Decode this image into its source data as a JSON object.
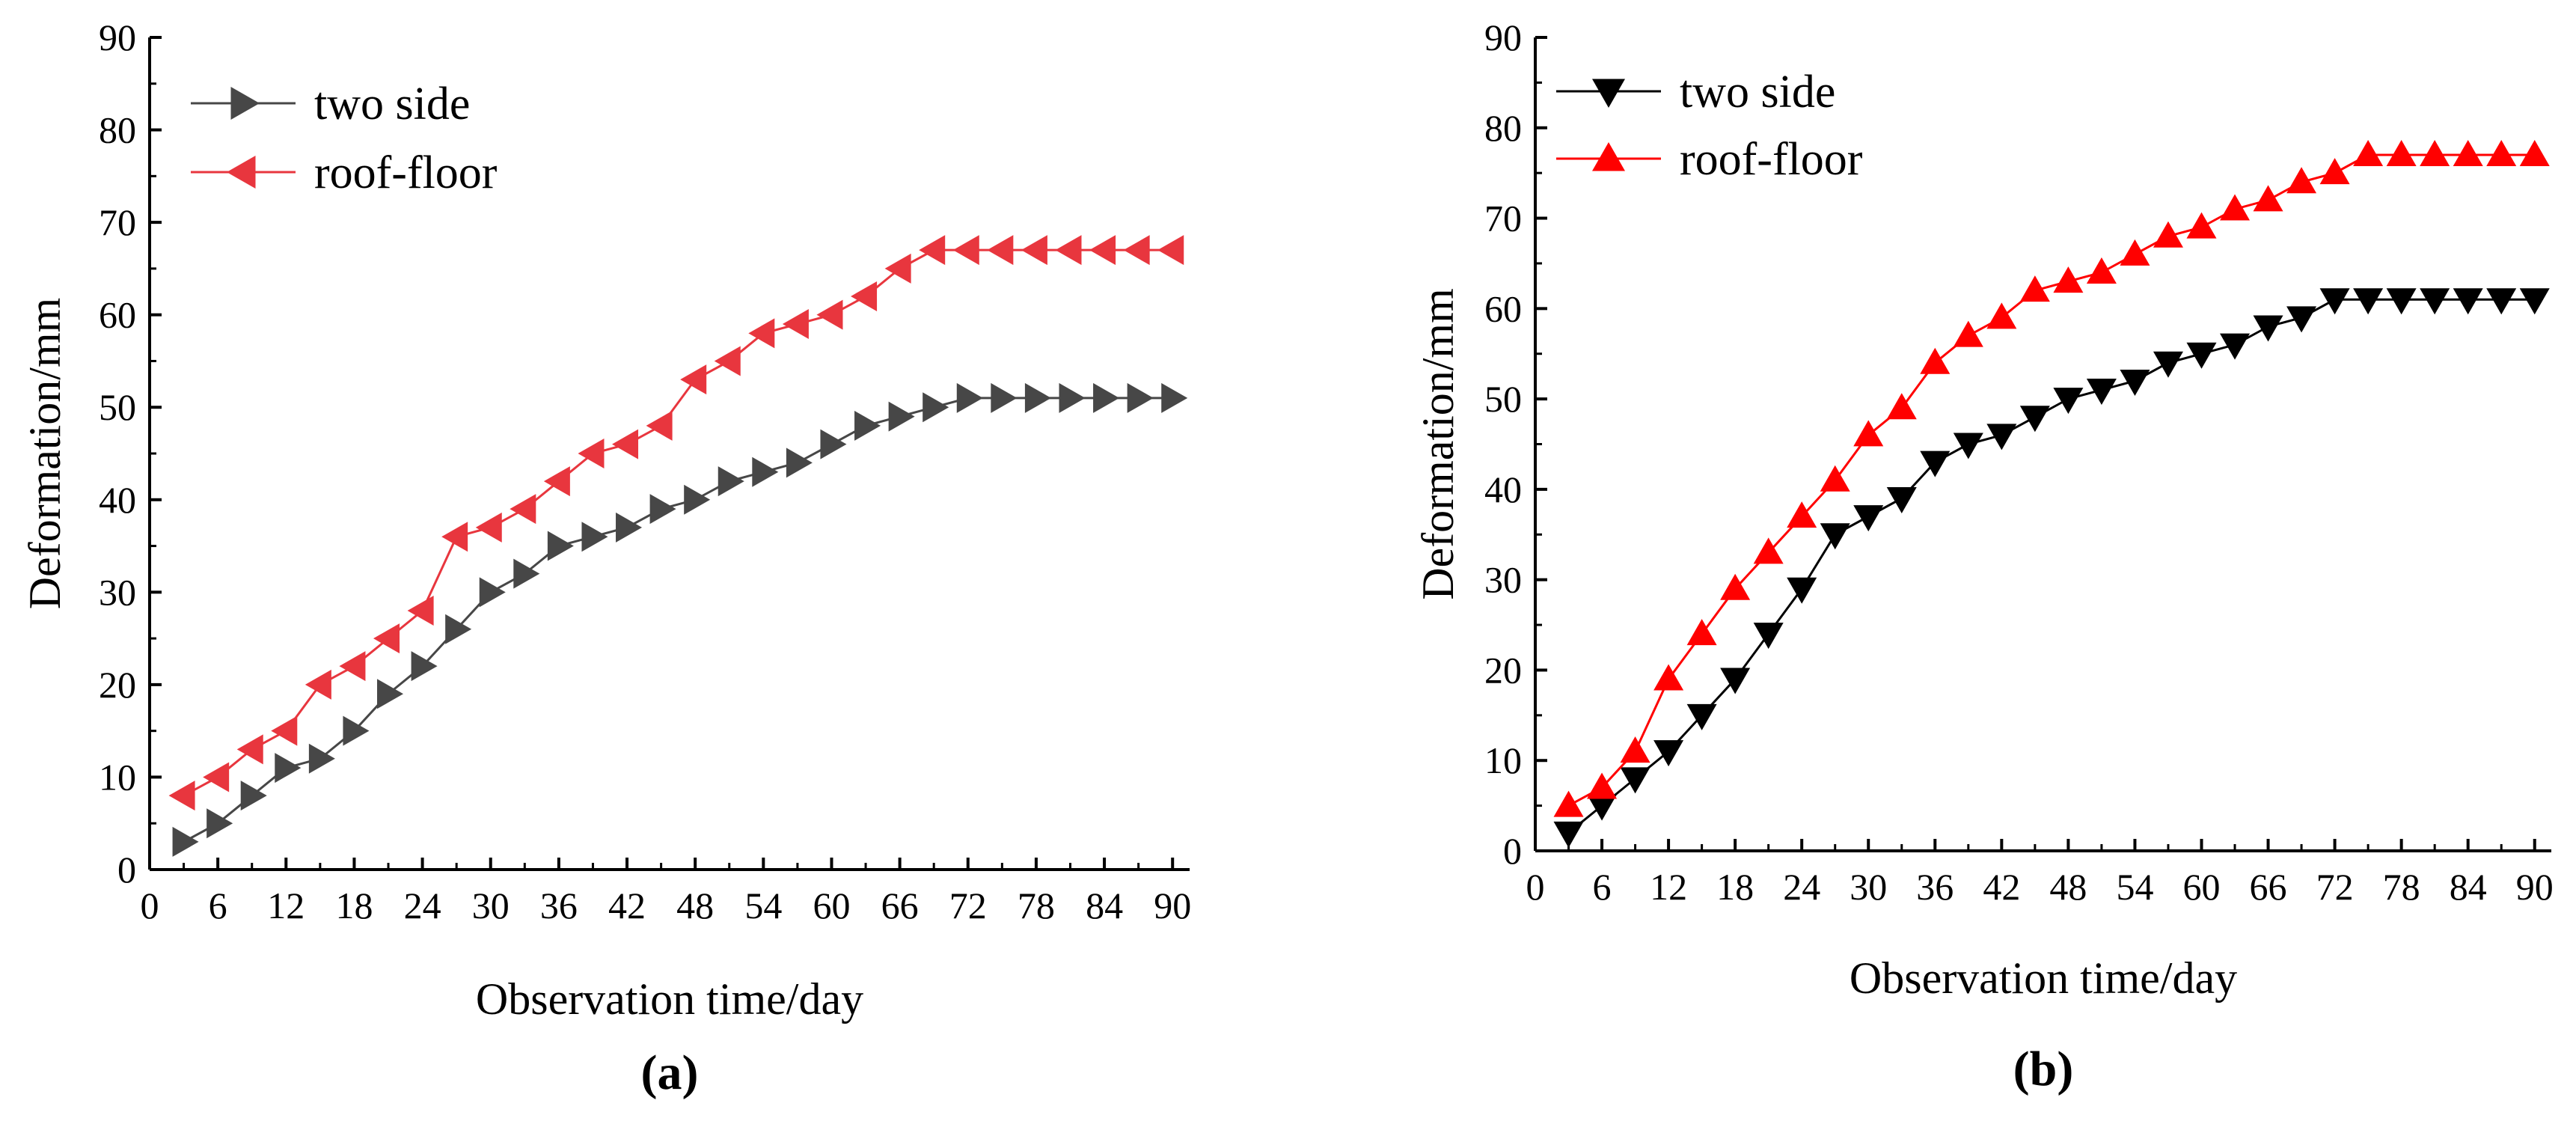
{
  "chart_data": [
    {
      "type": "line",
      "panel_label": "(a)",
      "xlabel": "Observation time/day",
      "ylabel": "Deformation/mm",
      "xlim": [
        0,
        91.5
      ],
      "ylim": [
        0,
        90
      ],
      "xticks": [
        0,
        6,
        12,
        18,
        24,
        30,
        36,
        42,
        48,
        54,
        60,
        66,
        72,
        78,
        84,
        90
      ],
      "xticks_minor": [
        3,
        9,
        15,
        21,
        27,
        33,
        39,
        45,
        51,
        57,
        63,
        69,
        75,
        81,
        87
      ],
      "yticks": [
        0,
        10,
        20,
        30,
        40,
        50,
        60,
        70,
        80,
        90
      ],
      "legend_position": "top-left",
      "x": [
        3,
        6,
        9,
        12,
        15,
        18,
        21,
        24,
        27,
        30,
        33,
        36,
        39,
        42,
        45,
        48,
        51,
        54,
        57,
        60,
        63,
        66,
        69,
        72,
        75,
        78,
        81,
        84,
        87,
        90
      ],
      "series": [
        {
          "name": "two side",
          "marker": "triangle-right",
          "color": "#474747",
          "line_color": "#474747",
          "values": [
            3,
            5,
            8,
            11,
            12,
            15,
            19,
            22,
            26,
            30,
            32,
            35,
            36,
            37,
            39,
            40,
            42,
            43,
            44,
            46,
            48,
            49,
            50,
            51,
            51,
            51,
            51,
            51,
            51,
            51
          ]
        },
        {
          "name": "roof-floor",
          "marker": "triangle-left",
          "color": "#e8363e",
          "line_color": "#e8363e",
          "values": [
            8,
            10,
            13,
            15,
            20,
            22,
            25,
            28,
            36,
            37,
            39,
            42,
            45,
            46,
            48,
            53,
            55,
            58,
            59,
            60,
            62,
            65,
            67,
            67,
            67,
            67,
            67,
            67,
            67,
            67
          ]
        }
      ]
    },
    {
      "type": "line",
      "panel_label": "(b)",
      "xlabel": "Observation time/day",
      "ylabel": "Deformation/mm",
      "xlim": [
        0,
        91.5
      ],
      "ylim": [
        0,
        90
      ],
      "xticks": [
        0,
        6,
        12,
        18,
        24,
        30,
        36,
        42,
        48,
        54,
        60,
        66,
        72,
        78,
        84,
        90
      ],
      "xticks_minor": [
        3,
        9,
        15,
        21,
        27,
        33,
        39,
        45,
        51,
        57,
        63,
        69,
        75,
        81,
        87
      ],
      "yticks": [
        0,
        10,
        20,
        30,
        40,
        50,
        60,
        70,
        80,
        90
      ],
      "legend_position": "top-left",
      "x": [
        3,
        6,
        9,
        12,
        15,
        18,
        21,
        24,
        27,
        30,
        33,
        36,
        39,
        42,
        45,
        48,
        51,
        54,
        57,
        60,
        63,
        66,
        69,
        72,
        75,
        78,
        81,
        84,
        87,
        90
      ],
      "series": [
        {
          "name": "two side",
          "marker": "triangle-down",
          "color": "#000000",
          "line_color": "#000000",
          "values": [
            2,
            5,
            8,
            11,
            15,
            19,
            24,
            29,
            35,
            37,
            39,
            43,
            45,
            46,
            48,
            50,
            51,
            52,
            54,
            55,
            56,
            58,
            59,
            61,
            61,
            61,
            61,
            61,
            61,
            61
          ]
        },
        {
          "name": "roof-floor",
          "marker": "triangle-up",
          "color": "#ff0000",
          "line_color": "#ff0000",
          "values": [
            5,
            7,
            11,
            19,
            24,
            29,
            33,
            37,
            41,
            46,
            49,
            54,
            57,
            59,
            62,
            63,
            64,
            66,
            68,
            69,
            71,
            72,
            74,
            75,
            77,
            77,
            77,
            77,
            77,
            77
          ]
        }
      ]
    }
  ]
}
